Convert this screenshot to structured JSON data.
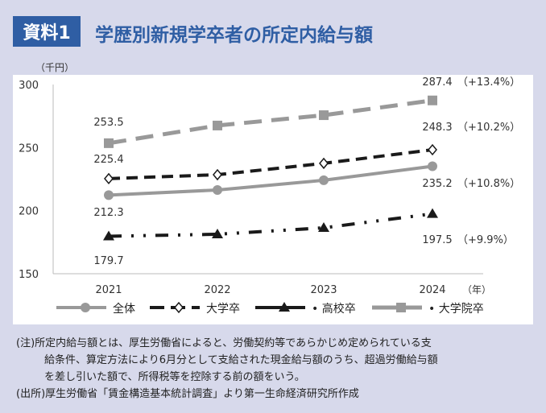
{
  "header": {
    "badge": "資料1",
    "title": "学歴別新規学卒者の所定内給与額"
  },
  "chart_data": {
    "type": "line",
    "title": "学歴別新規学卒者の所定内給与額",
    "ylabel": "（千円）",
    "xlabel": "（年）",
    "ylim": [
      150,
      300
    ],
    "yticks": [
      "150",
      "200",
      "250",
      "300"
    ],
    "categories": [
      "2021",
      "2022",
      "2023",
      "2024"
    ],
    "legend_position": "bottom",
    "series": [
      {
        "name": "全体",
        "values": [
          212.3,
          216.4,
          224.1,
          235.2
        ],
        "color": "#999999",
        "labels": [
          "212.3",
          "",
          "",
          "235.2"
        ],
        "change": "（+10.8%）"
      },
      {
        "name": "大学卒",
        "values": [
          225.4,
          228.5,
          237.5,
          248.3
        ],
        "color": "#1a1a1a",
        "labels": [
          "225.4",
          "",
          "",
          "248.3"
        ],
        "change": "（+10.2%）"
      },
      {
        "name": "高校卒",
        "values": [
          179.7,
          181.3,
          186.4,
          197.5
        ],
        "color": "#1a1a1a",
        "labels": [
          "179.7",
          "",
          "",
          "197.5"
        ],
        "change": "（+9.9%）"
      },
      {
        "name": "大学院卒",
        "values": [
          253.5,
          267.5,
          275.7,
          287.4
        ],
        "color": "#999999",
        "labels": [
          "253.5",
          "",
          "",
          "287.4"
        ],
        "change": "（+13.4%）"
      }
    ]
  },
  "notes": {
    "line1": "(注)所定内給与額とは、厚生労働省によると、労働契約等であらかじめ定められている支",
    "line2": "給条件、算定方法により6月分として支給された現金給与額のうち、超過労働給与額",
    "line3": "を差し引いた額で、所得税等を控除する前の額をいう。",
    "source": "(出所)厚生労働省「賃金構造基本統計調査」より第一生命経済研究所作成"
  }
}
